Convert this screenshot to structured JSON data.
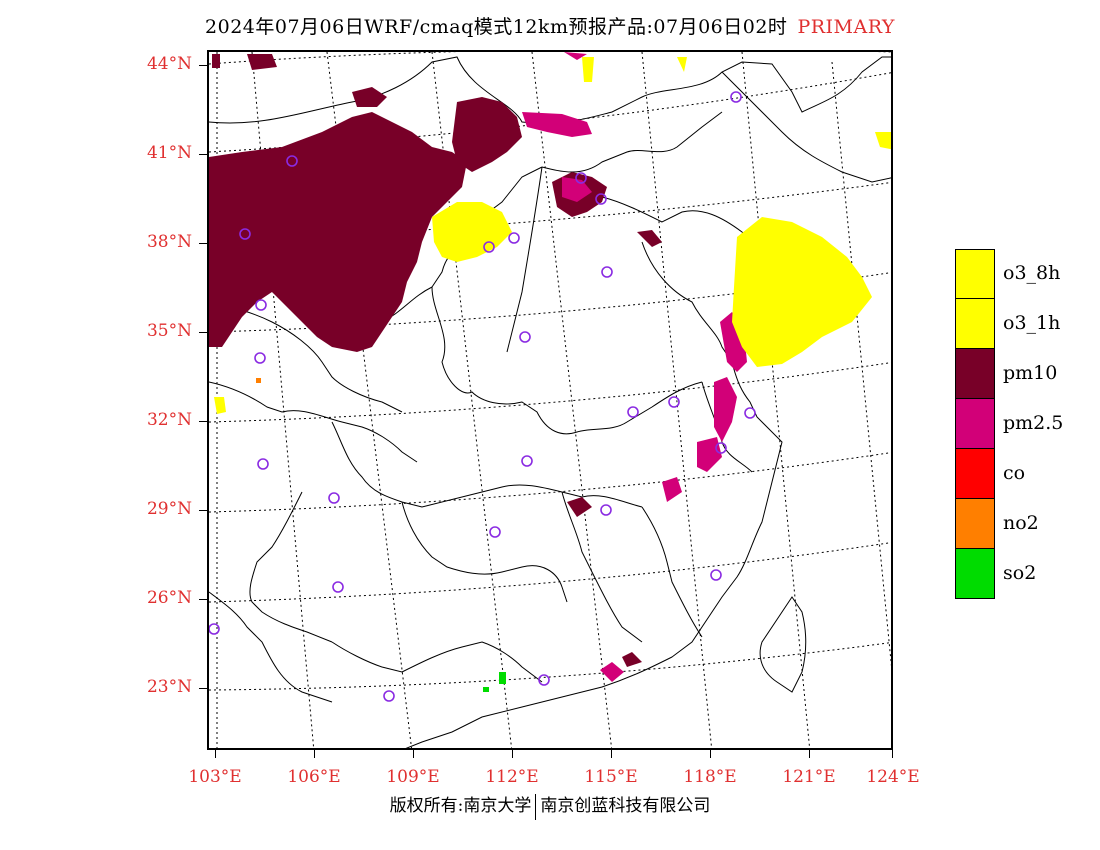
{
  "title": {
    "main": "2024年07月06日WRF/cmaq模式12km预报产品:07月06日02时",
    "tag": "PRIMARY"
  },
  "axes": {
    "lat_labels": [
      "44°N",
      "41°N",
      "38°N",
      "35°N",
      "32°N",
      "29°N",
      "26°N",
      "23°N"
    ],
    "lon_labels": [
      "103°E",
      "106°E",
      "109°E",
      "112°E",
      "115°E",
      "118°E",
      "121°E",
      "124°E"
    ]
  },
  "legend": [
    {
      "label": "o3_8h",
      "color": "#ffff00"
    },
    {
      "label": "o3_1h",
      "color": "#ffff00"
    },
    {
      "label": "pm10",
      "color": "#780028"
    },
    {
      "label": "pm2.5",
      "color": "#d20078"
    },
    {
      "label": "co",
      "color": "#ff0000"
    },
    {
      "label": "no2",
      "color": "#ff7f00"
    },
    {
      "label": "so2",
      "color": "#00dc00"
    }
  ],
  "copyright": {
    "left": "版权所有:南京大学",
    "right": "南京创蓝科技有限公司"
  },
  "colors": {
    "axis_label": "#e03030",
    "station_marker": "#8a2be2"
  }
}
